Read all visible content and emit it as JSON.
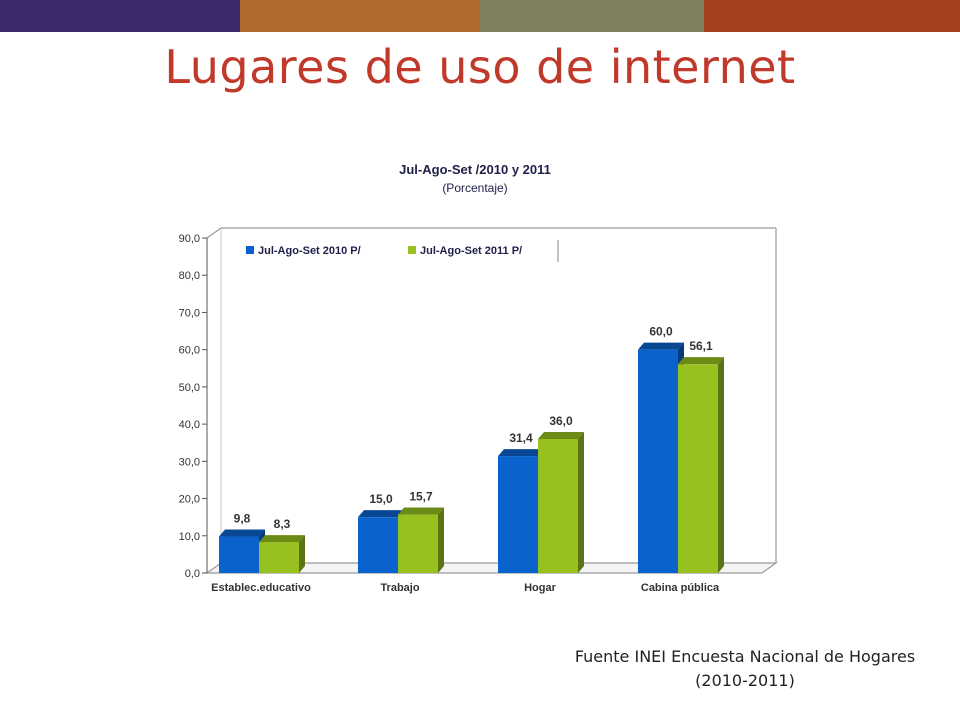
{
  "colors": {
    "bar1": "#3c2a6b",
    "bar2": "#b06a2c",
    "bar3": "#7f8060",
    "bar4": "#a54020",
    "title": "#c0392b",
    "series_2010": "#0a62cc",
    "series_2011": "#96c11f"
  },
  "slide": {
    "title": "Lugares de uso de internet"
  },
  "source": {
    "line1": "Fuente INEI Encuesta Nacional de Hogares",
    "line2": "(2010-2011)"
  },
  "chart_data": {
    "type": "bar",
    "title": "Jul-Ago-Set /2010 y 2011",
    "subtitle": "(Porcentaje)",
    "xlabel": "",
    "ylabel": "",
    "categories": [
      "Establec.educativo",
      "Trabajo",
      "Hogar",
      "Cabina pública"
    ],
    "series": [
      {
        "name": "Jul-Ago-Set 2010 P/",
        "values": [
          9.8,
          15.0,
          31.4,
          60.0
        ],
        "labels": [
          "9,8",
          "15,0",
          "31,4",
          "60,0"
        ]
      },
      {
        "name": "Jul-Ago-Set 2011 P/",
        "values": [
          8.3,
          15.7,
          36.0,
          56.1
        ],
        "labels": [
          "8,3",
          "15,7",
          "36,0",
          "56,1"
        ]
      }
    ],
    "ylim": [
      0,
      90
    ],
    "yticks": [
      "0,0",
      "10,0",
      "20,0",
      "30,0",
      "40,0",
      "50,0",
      "60,0",
      "70,0",
      "80,0",
      "90,0"
    ],
    "legend_position": "top-left",
    "grid": false
  }
}
